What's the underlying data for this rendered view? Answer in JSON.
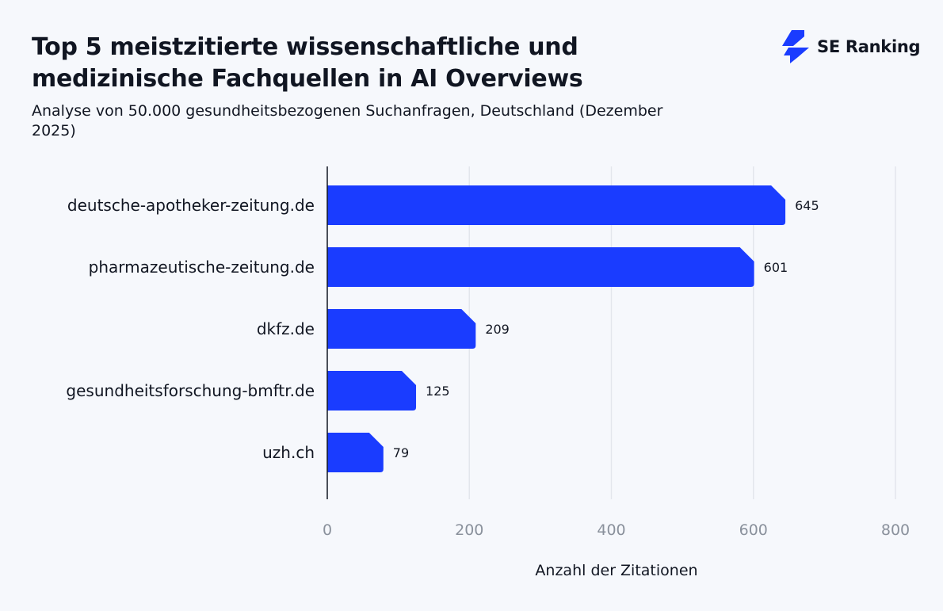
{
  "header": {
    "title": "Top 5 meistzitierte wissenschaftliche und medizinische Fachquellen in AI Overviews",
    "subtitle": "Analyse von 50.000 gesundheitsbezogenen Suchanfragen, Deutschland (Dezember 2025)",
    "logo_text": "SE Ranking"
  },
  "colors": {
    "bar": "#1a3cff",
    "background": "#f6f8fc",
    "grid": "#e3e6ec"
  },
  "chart_data": {
    "type": "bar",
    "orientation": "horizontal",
    "categories": [
      "deutsche-apotheker-zeitung.de",
      "pharmazeutische-zeitung.de",
      "dkfz.de",
      "gesundheitsforschung-bmftr.de",
      "uzh.ch"
    ],
    "values": [
      645,
      601,
      209,
      125,
      79
    ],
    "xlabel": "Anzahl der Zitationen",
    "ylabel": "",
    "xlim": [
      0,
      800
    ],
    "xticks": [
      0,
      200,
      400,
      600,
      800
    ],
    "grid": "vertical",
    "data_labels": true
  }
}
